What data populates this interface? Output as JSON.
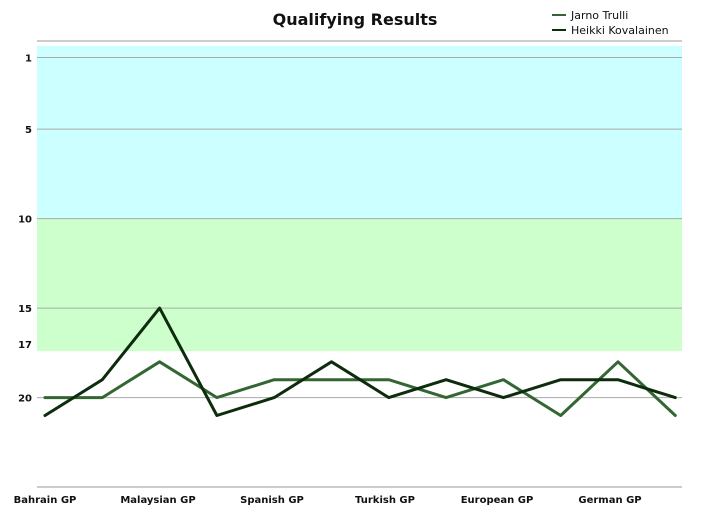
{
  "chart_data": {
    "type": "line",
    "title": "Qualifying Results",
    "categories": [
      "Bahrain GP",
      "",
      "Malaysian GP",
      "",
      "Spanish GP",
      "",
      "Turkish GP",
      "",
      "European GP",
      "",
      "German GP",
      ""
    ],
    "x_tick_labels": [
      "Bahrain GP",
      "Malaysian GP",
      "Spanish GP",
      "Turkish GP",
      "European GP",
      "German GP"
    ],
    "y_tick_labels": [
      "1",
      "5",
      "10",
      "15",
      "17",
      "20"
    ],
    "y_ticks": [
      1,
      5,
      10,
      15,
      17,
      20
    ],
    "ylim": [
      1,
      24
    ],
    "y_inverted": true,
    "bands": [
      {
        "from": 1,
        "to": 10,
        "color": "#ccffff"
      },
      {
        "from": 10,
        "to": 17.4,
        "color": "#ccffcc"
      }
    ],
    "grid": true,
    "legend_position": "top-right",
    "series": [
      {
        "name": "Jarno Trulli",
        "color": "#336633",
        "values": [
          20,
          20,
          18,
          20,
          19,
          19,
          19,
          20,
          19,
          21,
          18,
          21
        ]
      },
      {
        "name": "Heikki Kovalainen",
        "color": "#0d2b0d",
        "values": [
          21,
          19,
          15,
          21,
          20,
          18,
          20,
          19,
          20,
          19,
          19,
          20
        ]
      }
    ]
  }
}
